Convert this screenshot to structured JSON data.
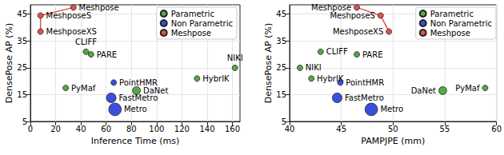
{
  "chart_data": [
    {
      "type": "scatter",
      "x_label": "Inference Time (ms)",
      "y_label": "DensePose AP (%)",
      "xlim": [
        0,
        166
      ],
      "xticks": [
        0,
        20,
        40,
        60,
        80,
        100,
        120,
        140,
        160
      ],
      "ylim": [
        5,
        48.5
      ],
      "yticks": [
        5,
        15,
        25,
        35,
        45
      ],
      "grid": true,
      "legend": "upper right",
      "series": [
        {
          "name": "Parametric",
          "color": "#55a845",
          "type": "scatter",
          "marker": "circle",
          "labels": [
            "CLIFF",
            "PARE",
            "PyMaf",
            "DaNet",
            "HybrIK",
            "NIKI"
          ],
          "x": [
            44,
            48,
            28,
            84,
            132,
            162
          ],
          "values": [
            31,
            30,
            17.5,
            16.5,
            21,
            25
          ],
          "sizes": [
            1,
            1,
            1,
            2,
            1,
            1
          ]
        },
        {
          "name": "Non Parametric",
          "color": "#3a4fdc",
          "type": "scatter",
          "marker": "circle",
          "labels": [
            "PointHMR",
            "FastMetro",
            "Metro"
          ],
          "x": [
            66,
            64,
            67
          ],
          "values": [
            19.5,
            13.8,
            9.5
          ],
          "sizes": [
            1,
            3,
            5
          ]
        },
        {
          "name": "Meshpose",
          "color": "#e0524c",
          "type": "line",
          "marker": "circle",
          "line_style": "solid",
          "labels": [
            "Meshpose",
            "MeshposeS",
            "MeshposeXS"
          ],
          "x": [
            34,
            8,
            8
          ],
          "values": [
            47.5,
            44.5,
            38.5
          ],
          "sizes": [
            1,
            1,
            1
          ]
        }
      ]
    },
    {
      "type": "scatter",
      "x_label": "PAMPJPE (mm)",
      "y_label": "DensePose AP (%)",
      "xlim": [
        40,
        60
      ],
      "xticks": [
        40,
        45,
        50,
        55,
        60
      ],
      "ylim": [
        5,
        48.5
      ],
      "yticks": [
        5,
        15,
        25,
        35,
        45
      ],
      "grid": true,
      "legend": "upper right",
      "series": [
        {
          "name": "Parametric",
          "color": "#55a845",
          "type": "scatter",
          "marker": "circle",
          "labels": [
            "CLIFF",
            "PARE",
            "PyMaf",
            "DaNet",
            "HybrIK",
            "NIKI"
          ],
          "x": [
            43,
            46.5,
            58.9,
            54.8,
            42.1,
            41
          ],
          "values": [
            31,
            30,
            17.5,
            16.5,
            21,
            25
          ],
          "sizes": [
            1,
            1,
            1,
            2,
            1,
            1
          ]
        },
        {
          "name": "Non Parametric",
          "color": "#3a4fdc",
          "type": "scatter",
          "marker": "circle",
          "labels": [
            "PointHMR",
            "FastMetro",
            "Metro"
          ],
          "x": [
            44.9,
            44.6,
            47.9
          ],
          "values": [
            19.5,
            13.8,
            9.5
          ],
          "sizes": [
            1,
            3,
            5
          ]
        },
        {
          "name": "Meshpose",
          "color": "#e0524c",
          "type": "line",
          "marker": "circle",
          "line_style": "solid",
          "labels": [
            "Meshpose",
            "MeshposeS",
            "MeshposeXS"
          ],
          "x": [
            46.5,
            48.8,
            49.6
          ],
          "values": [
            47.5,
            44.5,
            38.5
          ],
          "sizes": [
            1,
            1,
            1
          ]
        }
      ]
    }
  ]
}
